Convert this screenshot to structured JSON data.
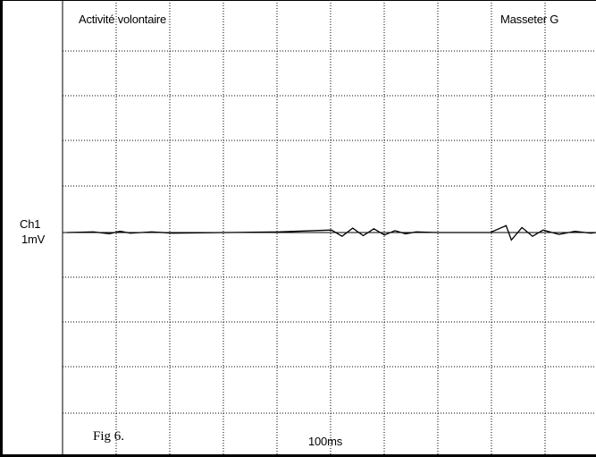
{
  "chart_data": {
    "type": "line",
    "title": "Activité volontaire",
    "muscle_label": "Masseter G",
    "channel_label": "Ch1",
    "scale_label": "1mV",
    "time_scale_label": "100ms",
    "figure_label": "Fig 6.",
    "grid": true,
    "grid_style": "dotted",
    "trace_color": "#000000",
    "series": [
      {
        "x": [
          0.0,
          0.05,
          0.08,
          0.1,
          0.12,
          0.14,
          0.16,
          0.2,
          0.3,
          0.4,
          0.5,
          0.52,
          0.54,
          0.56,
          0.58,
          0.6,
          0.62,
          0.64,
          0.66,
          0.7,
          0.8,
          0.83,
          0.84,
          0.86,
          0.88,
          0.9,
          0.93,
          0.96,
          0.99,
          1.0
        ],
        "y": [
          0.0,
          0.05,
          -0.1,
          0.1,
          -0.05,
          0.0,
          0.05,
          -0.05,
          0.0,
          0.05,
          0.2,
          -0.3,
          0.35,
          -0.25,
          0.3,
          -0.2,
          0.15,
          -0.1,
          0.05,
          0.0,
          0.0,
          0.55,
          -0.6,
          0.4,
          -0.3,
          0.2,
          -0.15,
          0.1,
          -0.05,
          0.0
        ]
      }
    ]
  }
}
